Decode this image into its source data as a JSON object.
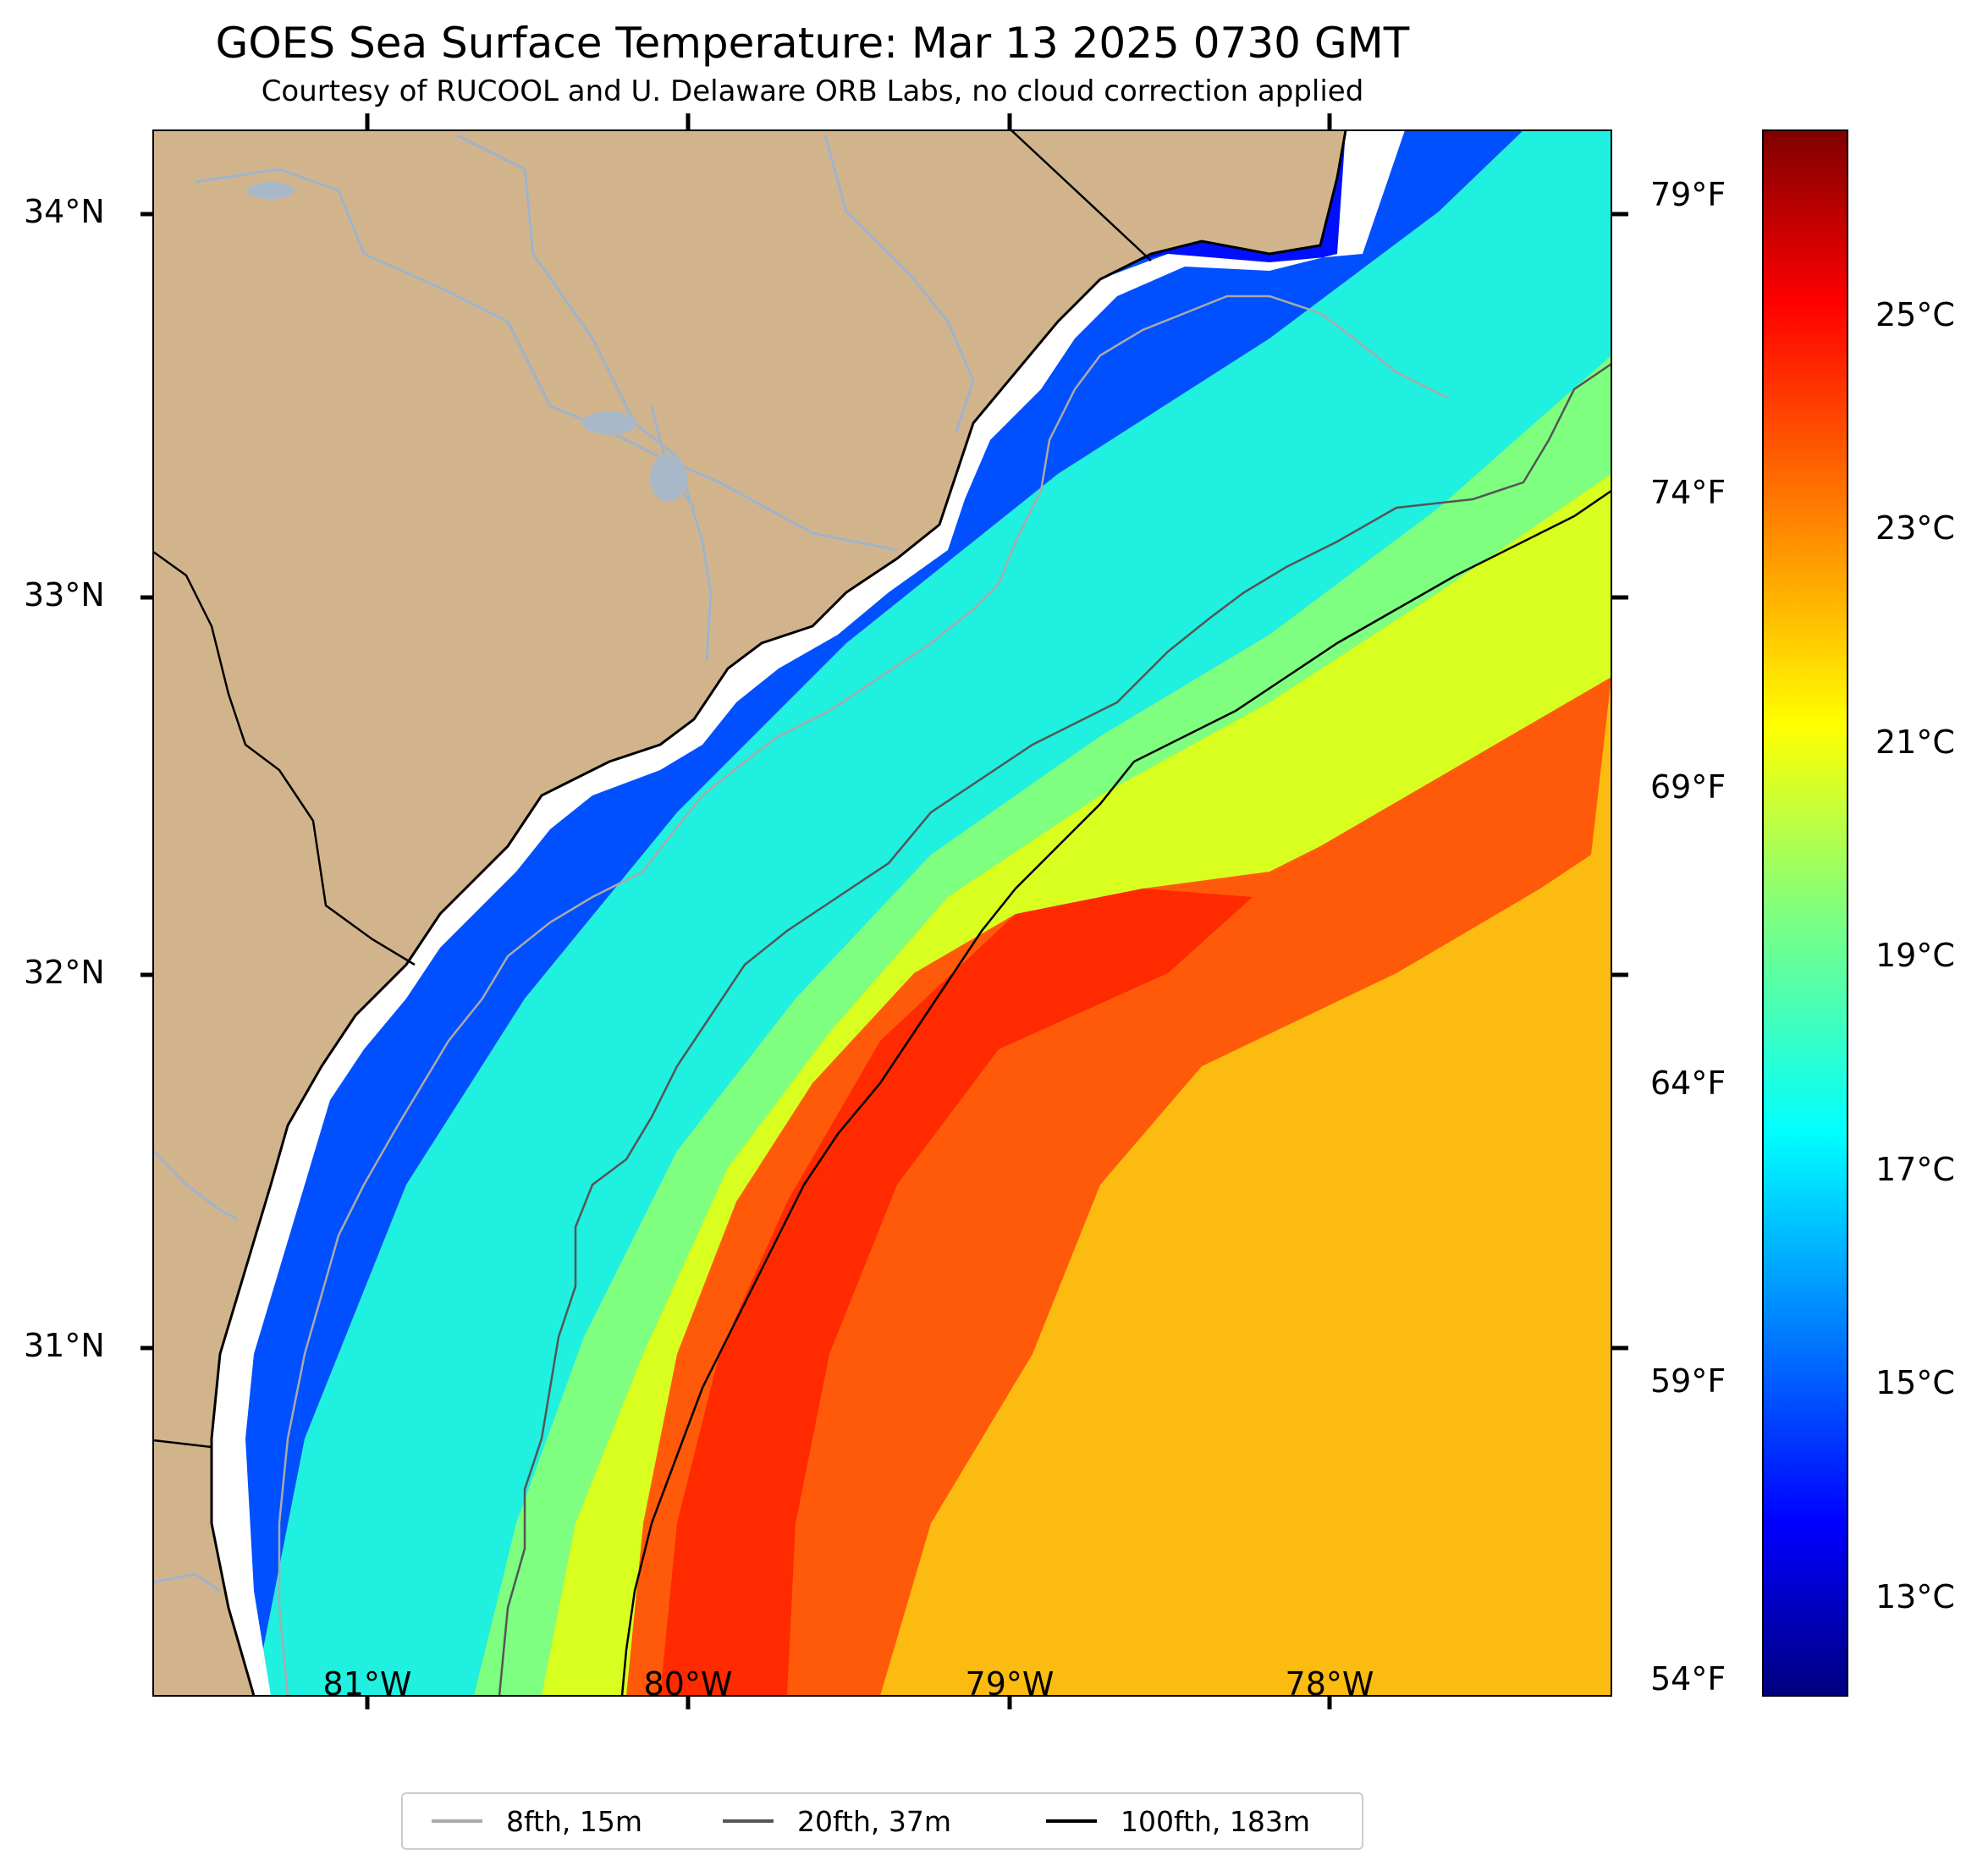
{
  "map": {
    "title": "GOES Sea Surface Temperature: Mar 13 2025 0730 GMT",
    "subtitle": "Courtesy of RUCOOL and U. Delaware ORB Labs, no cloud correction applied",
    "latitude_labels": [
      "34°N",
      "33°N",
      "32°N",
      "31°N"
    ],
    "longitude_labels": [
      "81°W",
      "80°W",
      "79°W",
      "78°W"
    ],
    "fahrenheit_labels": [
      "79°F",
      "74°F",
      "69°F",
      "64°F",
      "59°F",
      "54°F"
    ],
    "colorbar": {
      "celsius_labels": [
        "25°C",
        "23°C",
        "21°C",
        "19°C",
        "17°C",
        "15°C",
        "13°C"
      ],
      "range_celsius": [
        12,
        26.5
      ],
      "colormap": "jet"
    },
    "legend": [
      {
        "label": "8fth, 15m",
        "color": "#aaaaaa"
      },
      {
        "label": "20fth, 37m",
        "color": "#555555"
      },
      {
        "label": "100fth, 183m",
        "color": "#000000"
      }
    ],
    "colors": {
      "land": "#d2b48c",
      "river": "#9db4cc",
      "no_data": "#ffffff"
    }
  }
}
